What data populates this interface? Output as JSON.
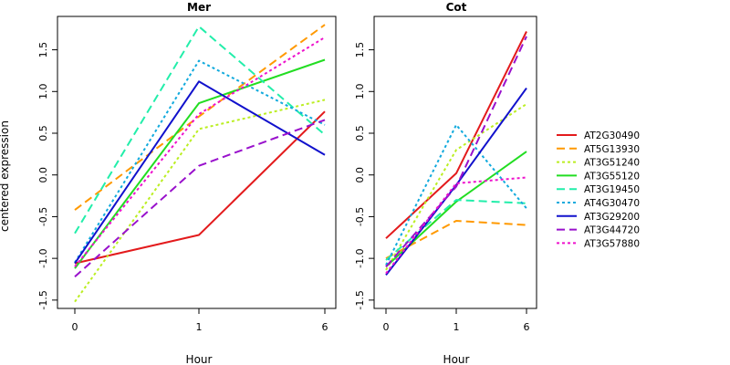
{
  "chart_data": {
    "type": "line",
    "ylabel": "centered expression",
    "legend_position": "right",
    "colors": {
      "AT2G30490": "#e31a1c",
      "AT5G13930": "#ff9900",
      "AT3G51240": "#bbee22",
      "AT3G55120": "#22dd22",
      "AT3G19450": "#22eeaa",
      "AT4G30470": "#11aadd",
      "AT3G29200": "#1111cc",
      "AT3G44720": "#9911cc",
      "AT3G57880": "#ee11cc"
    },
    "dash_styles": {
      "AT2G30490": "solid",
      "AT5G13930": "dashed",
      "AT3G51240": "dotted",
      "AT3G55120": "solid",
      "AT3G19450": "dashed",
      "AT4G30470": "dotted",
      "AT3G29200": "solid",
      "AT3G44720": "dashed",
      "AT3G57880": "dotted"
    },
    "legend": [
      "AT2G30490",
      "AT5G13930",
      "AT3G51240",
      "AT3G55120",
      "AT3G19450",
      "AT4G30470",
      "AT3G29200",
      "AT3G44720",
      "AT3G57880"
    ],
    "panels": [
      {
        "title": "Mer",
        "xlabel": "Hour",
        "x": [
          "0",
          "1",
          "6"
        ],
        "ylim": [
          -1.6,
          1.9
        ],
        "yticks": [
          "-1.5",
          "-1.0",
          "-0.5",
          "0.0",
          "0.5",
          "1.0",
          "1.5"
        ],
        "series": [
          {
            "name": "AT2G30490",
            "values": [
              -1.06,
              -0.72,
              0.76
            ]
          },
          {
            "name": "AT5G13930",
            "values": [
              -0.42,
              0.7,
              1.8
            ]
          },
          {
            "name": "AT3G51240",
            "values": [
              -1.52,
              0.55,
              0.9
            ]
          },
          {
            "name": "AT3G55120",
            "values": [
              -1.12,
              0.86,
              1.38
            ]
          },
          {
            "name": "AT3G19450",
            "values": [
              -0.7,
              1.78,
              0.48
            ]
          },
          {
            "name": "AT4G30470",
            "values": [
              -1.05,
              1.37,
              0.6
            ]
          },
          {
            "name": "AT3G29200",
            "values": [
              -1.06,
              1.12,
              0.24
            ]
          },
          {
            "name": "AT3G44720",
            "values": [
              -1.22,
              0.11,
              0.66
            ]
          },
          {
            "name": "AT3G57880",
            "values": [
              -1.1,
              0.73,
              1.65
            ]
          }
        ]
      },
      {
        "title": "Cot",
        "xlabel": "Hour",
        "x": [
          "0",
          "1",
          "6"
        ],
        "ylim": [
          -1.6,
          1.9
        ],
        "yticks": [
          "-1.5",
          "-1.0",
          "-0.5",
          "0.0",
          "0.5",
          "1.0",
          "1.5"
        ],
        "series": [
          {
            "name": "AT2G30490",
            "values": [
              -0.76,
              0.02,
              1.72
            ]
          },
          {
            "name": "AT5G13930",
            "values": [
              -1.0,
              -0.55,
              -0.6
            ]
          },
          {
            "name": "AT3G51240",
            "values": [
              -1.14,
              0.3,
              0.85
            ]
          },
          {
            "name": "AT3G55120",
            "values": [
              -1.1,
              -0.32,
              0.28
            ]
          },
          {
            "name": "AT3G19450",
            "values": [
              -1.02,
              -0.3,
              -0.34
            ]
          },
          {
            "name": "AT4G30470",
            "values": [
              -1.08,
              0.6,
              -0.4
            ]
          },
          {
            "name": "AT3G29200",
            "values": [
              -1.2,
              -0.12,
              1.04
            ]
          },
          {
            "name": "AT3G44720",
            "values": [
              -1.1,
              -0.14,
              1.66
            ]
          },
          {
            "name": "AT3G57880",
            "values": [
              -1.18,
              -0.1,
              -0.03
            ]
          }
        ]
      }
    ]
  }
}
